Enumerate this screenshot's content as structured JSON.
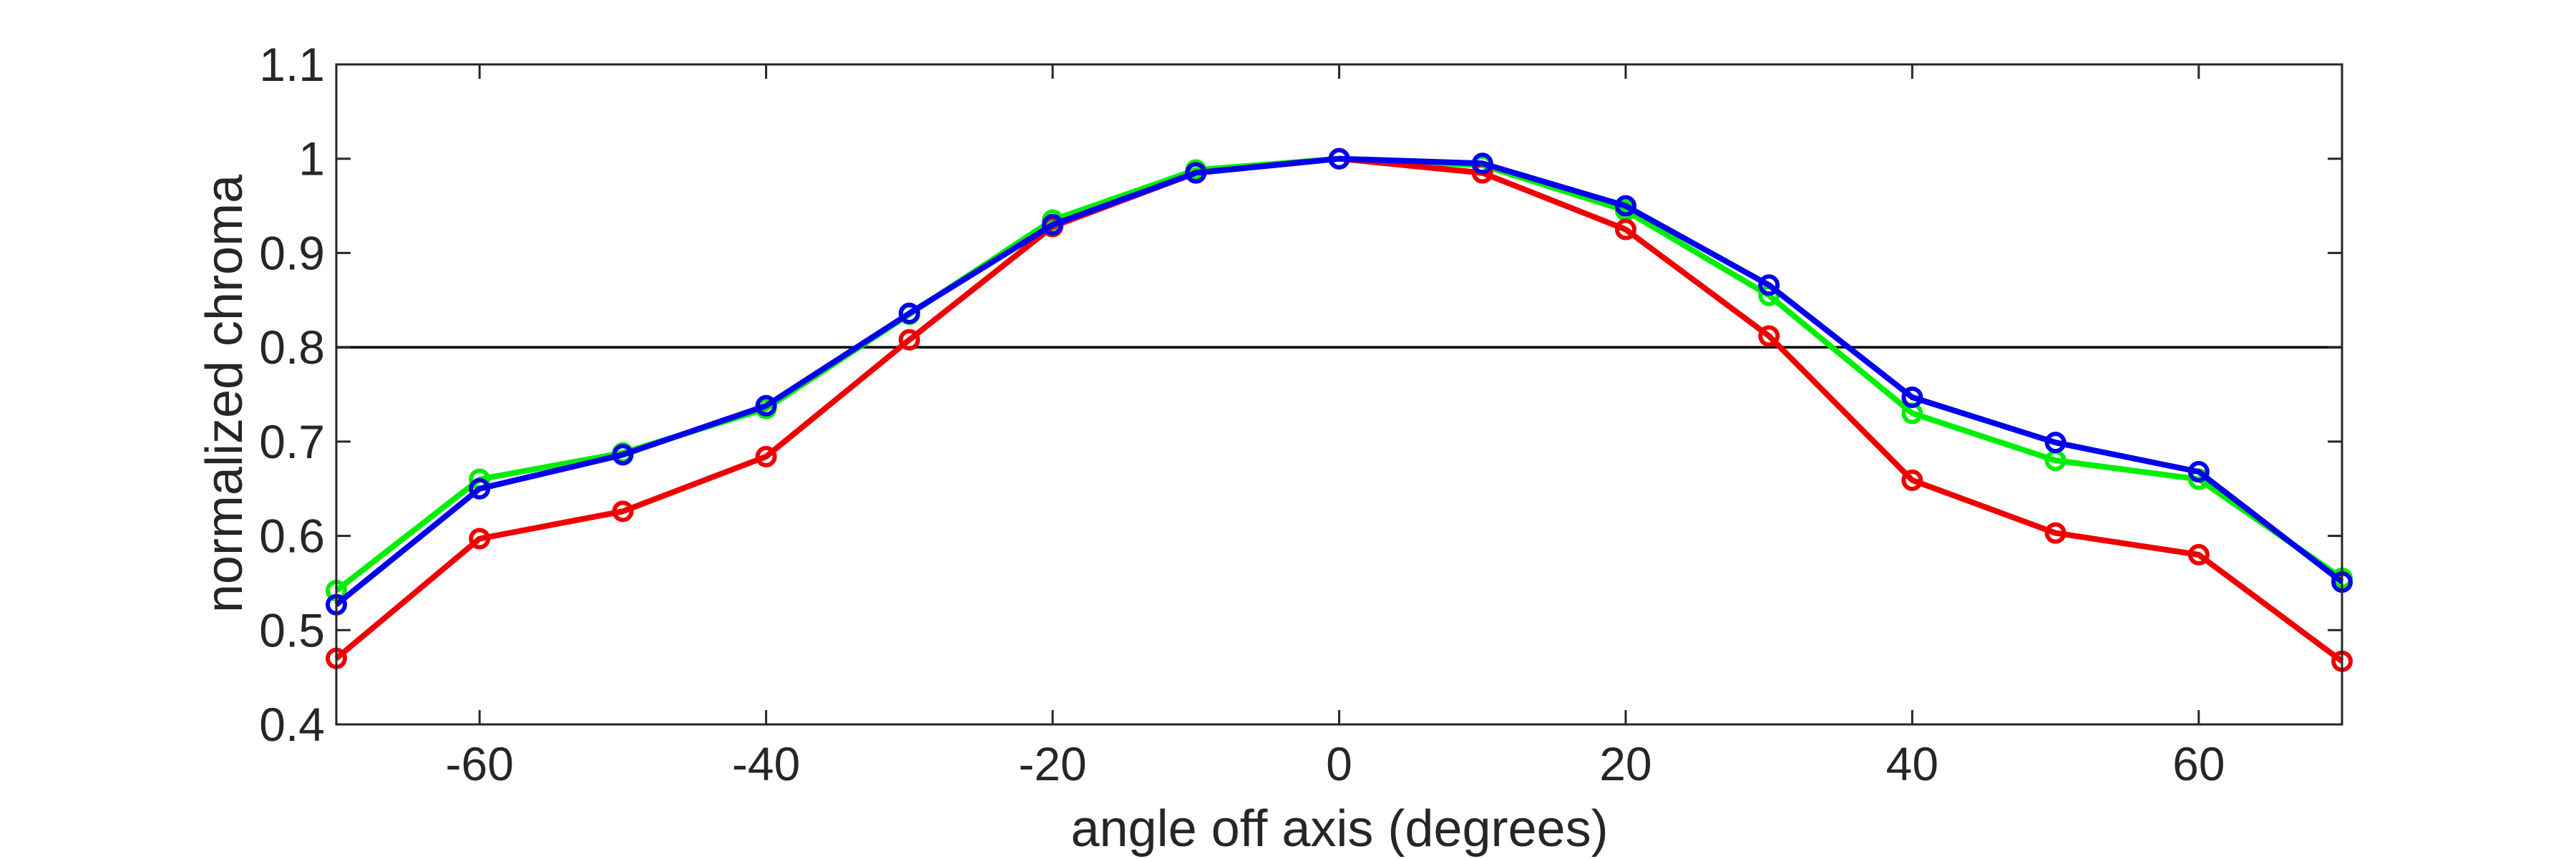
{
  "chart_data": {
    "type": "line",
    "xlabel": "angle off axis (degrees)",
    "ylabel": "normalized chroma",
    "xlim": [
      -70,
      70
    ],
    "ylim": [
      0.4,
      1.1
    ],
    "x_ticks": [
      -60,
      -40,
      -20,
      0,
      20,
      40,
      60
    ],
    "x_tick_labels": [
      "-60",
      "-40",
      "-20",
      "0",
      "20",
      "40",
      "60"
    ],
    "y_ticks": [
      0.4,
      0.5,
      0.6,
      0.7,
      0.8,
      0.9,
      1.0,
      1.1
    ],
    "y_tick_labels": [
      "0.4",
      "0.5",
      "0.6",
      "0.7",
      "0.8",
      "0.9",
      "1",
      "1.1"
    ],
    "reference_line": 0.8,
    "grid": false,
    "marker": "circle",
    "x": [
      -70,
      -60,
      -50,
      -40,
      -30,
      -20,
      -10,
      0,
      10,
      20,
      30,
      40,
      50,
      60,
      70
    ],
    "series": [
      {
        "color": "#00ee00",
        "values": [
          0.542,
          0.66,
          0.688,
          0.735,
          0.835,
          0.935,
          0.988,
          1.0,
          0.993,
          0.945,
          0.855,
          0.73,
          0.68,
          0.66,
          0.555
        ]
      },
      {
        "color": "#ee0000",
        "values": [
          0.47,
          0.597,
          0.626,
          0.684,
          0.808,
          0.928,
          0.985,
          1.0,
          0.985,
          0.925,
          0.812,
          0.659,
          0.603,
          0.58,
          0.467
        ]
      },
      {
        "color": "#0000ee",
        "values": [
          0.527,
          0.65,
          0.686,
          0.738,
          0.836,
          0.93,
          0.985,
          1.0,
          0.995,
          0.95,
          0.866,
          0.747,
          0.699,
          0.668,
          0.551
        ]
      }
    ]
  }
}
